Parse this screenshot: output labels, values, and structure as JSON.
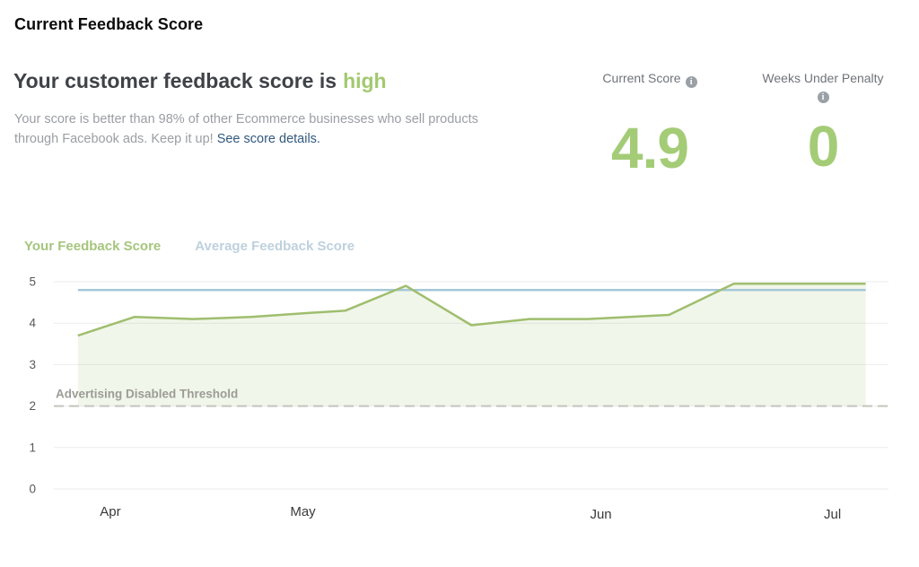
{
  "header": {
    "title": "Current Feedback Score"
  },
  "summary": {
    "heading_prefix": "Your customer feedback score is",
    "heading_status": "high",
    "body_text": "Your score is better than 98% of other Ecommerce businesses who sell products through Facebook ads. Keep it up!",
    "link_text": "See score details."
  },
  "stats": [
    {
      "label": "Current Score",
      "value": "4.9",
      "info_icon": "i"
    },
    {
      "label": "Weeks Under Penalty",
      "value": "0",
      "info_icon": "i"
    }
  ],
  "legend": [
    {
      "label": "Your Feedback Score",
      "color": "#a6c57d",
      "active": true
    },
    {
      "label": "Average Feedback Score",
      "color": "#bed1dd",
      "active": false
    }
  ],
  "colors": {
    "accent_green": "#a4cc77",
    "status_green": "#a3c96f",
    "score_line_green": "#9fbe6e",
    "average_line_blue": "#a5c8d8",
    "link_blue": "#31597e",
    "threshold_gray": "#c4c4bd",
    "gridline_gray": "#ebebeb"
  },
  "chart_data": {
    "type": "line",
    "title": "",
    "xlabel": "",
    "ylabel": "",
    "ylim": [
      0,
      5
    ],
    "yticks": [
      0,
      1,
      2,
      3,
      4,
      5
    ],
    "grid": true,
    "legend_position": "top-left",
    "x_ticks": [
      {
        "label": "Apr",
        "pos": 0.068,
        "dy": 0
      },
      {
        "label": "May",
        "pos": 0.3,
        "dy": 0
      },
      {
        "label": "Jun",
        "pos": 0.659,
        "dy": 3
      },
      {
        "label": "Jul",
        "pos": 0.938,
        "dy": 3
      }
    ],
    "series": [
      {
        "name": "Your Feedback Score",
        "type": "line",
        "color": "#9fbe6e",
        "fill": "rgba(163,195,115,0.15)",
        "points": [
          {
            "x": 0.029,
            "y": 3.7
          },
          {
            "x": 0.097,
            "y": 4.15
          },
          {
            "x": 0.168,
            "y": 4.1
          },
          {
            "x": 0.238,
            "y": 4.15
          },
          {
            "x": 0.308,
            "y": 4.25
          },
          {
            "x": 0.351,
            "y": 4.3
          },
          {
            "x": 0.424,
            "y": 4.9
          },
          {
            "x": 0.503,
            "y": 3.95
          },
          {
            "x": 0.573,
            "y": 4.1
          },
          {
            "x": 0.643,
            "y": 4.1
          },
          {
            "x": 0.741,
            "y": 4.2
          },
          {
            "x": 0.819,
            "y": 4.95
          },
          {
            "x": 0.897,
            "y": 4.95
          },
          {
            "x": 0.978,
            "y": 4.95
          }
        ]
      },
      {
        "name": "Average Feedback Score",
        "type": "horizontal",
        "color": "#a5c8d8",
        "value": 4.8,
        "x_start": 0.029,
        "x_end": 0.978
      }
    ],
    "threshold": {
      "label": "Advertising Disabled Threshold",
      "value": 2
    },
    "area_fill_to": 2
  }
}
